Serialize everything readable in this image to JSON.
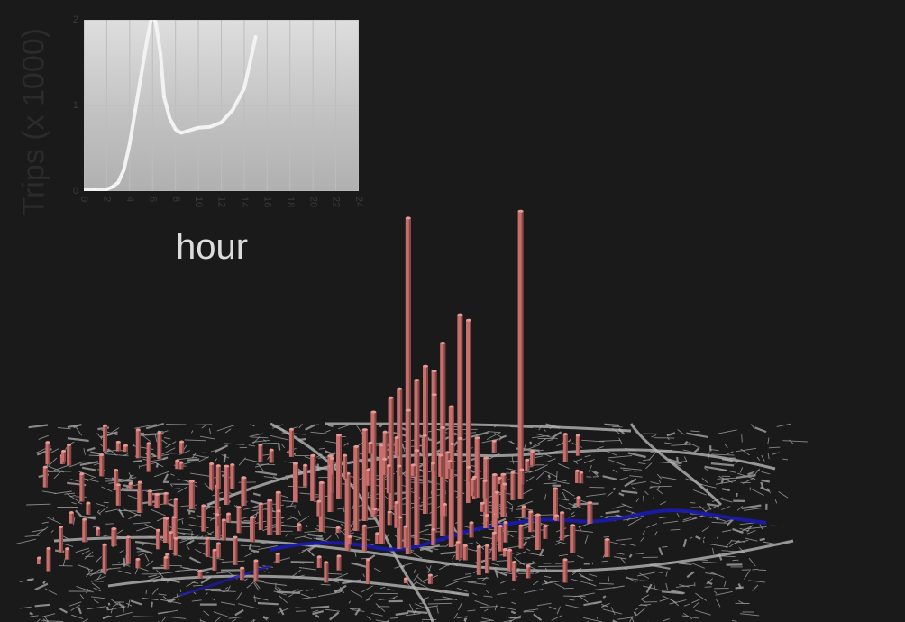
{
  "chart_data": [
    {
      "type": "line",
      "ylabel": "Trips (x 1000)",
      "xlabel": "hour",
      "x_ticks": [
        "0",
        "2",
        "4",
        "6",
        "8",
        "10",
        "12",
        "14",
        "16",
        "18",
        "20",
        "22",
        "24"
      ],
      "y_ticks": [
        "0",
        "1",
        "2"
      ],
      "xlim": [
        0,
        24
      ],
      "ylim": [
        0,
        2
      ],
      "grid": true,
      "series": [
        {
          "x": [
            0,
            1,
            2,
            2.5,
            3,
            3.5,
            4,
            4.5,
            5,
            5.5,
            6,
            6.3,
            6.7,
            7,
            7.5,
            8,
            8.5,
            9,
            10,
            11,
            12,
            13,
            14,
            14.5,
            15
          ],
          "y": [
            0.02,
            0.02,
            0.02,
            0.05,
            0.1,
            0.25,
            0.55,
            0.95,
            1.35,
            1.75,
            2.1,
            1.95,
            1.6,
            1.1,
            0.85,
            0.72,
            0.68,
            0.7,
            0.74,
            0.75,
            0.8,
            0.95,
            1.2,
            1.5,
            1.8
          ]
        }
      ]
    },
    {
      "type": "bar",
      "title": "",
      "bars": [
        {
          "x": 0.43,
          "h": 0.79
        },
        {
          "x": 0.49,
          "h": 0.61
        },
        {
          "x": 0.56,
          "h": 0.82
        },
        {
          "x": 0.46,
          "h": 0.46
        },
        {
          "x": 0.5,
          "h": 0.52
        },
        {
          "x": 0.47,
          "h": 0.55
        },
        {
          "x": 0.44,
          "h": 0.36
        },
        {
          "x": 0.42,
          "h": 0.43
        },
        {
          "x": 0.41,
          "h": 0.32
        },
        {
          "x": 0.4,
          "h": 0.28
        },
        {
          "x": 0.45,
          "h": 0.42
        },
        {
          "x": 0.48,
          "h": 0.4
        },
        {
          "x": 0.39,
          "h": 0.3
        },
        {
          "x": 0.36,
          "h": 0.22
        },
        {
          "x": 0.38,
          "h": 0.26
        },
        {
          "x": 0.43,
          "h": 0.41
        },
        {
          "x": 0.46,
          "h": 0.37
        },
        {
          "x": 0.49,
          "h": 0.34
        },
        {
          "x": 0.52,
          "h": 0.2
        },
        {
          "x": 0.35,
          "h": 0.18
        },
        {
          "x": 0.33,
          "h": 0.14
        },
        {
          "x": 0.3,
          "h": 0.11
        },
        {
          "x": 0.27,
          "h": 0.1
        },
        {
          "x": 0.24,
          "h": 0.08
        },
        {
          "x": 0.21,
          "h": 0.09
        },
        {
          "x": 0.18,
          "h": 0.08
        },
        {
          "x": 0.15,
          "h": 0.07
        },
        {
          "x": 0.12,
          "h": 0.06
        },
        {
          "x": 0.09,
          "h": 0.05
        },
        {
          "x": 0.54,
          "h": 0.12
        },
        {
          "x": 0.58,
          "h": 0.1
        },
        {
          "x": 0.6,
          "h": 0.09
        },
        {
          "x": 0.62,
          "h": 0.08
        },
        {
          "x": 0.64,
          "h": 0.06
        },
        {
          "x": 0.66,
          "h": 0.05
        },
        {
          "x": 0.53,
          "h": 0.15
        },
        {
          "x": 0.51,
          "h": 0.17
        },
        {
          "x": 0.37,
          "h": 0.24
        },
        {
          "x": 0.32,
          "h": 0.13
        },
        {
          "x": 0.28,
          "h": 0.12
        },
        {
          "x": 0.22,
          "h": 0.11
        },
        {
          "x": 0.16,
          "h": 0.06
        },
        {
          "x": 0.14,
          "h": 0.04
        },
        {
          "x": 0.25,
          "h": 0.07
        },
        {
          "x": 0.34,
          "h": 0.16
        },
        {
          "x": 0.44,
          "h": 0.27
        },
        {
          "x": 0.47,
          "h": 0.25
        },
        {
          "x": 0.42,
          "h": 0.09
        }
      ]
    }
  ],
  "colors": {
    "bar": "#c76f6c",
    "bar_dark": "#8a4745",
    "river": "#1a1aa8",
    "roads": "#a8a8a8",
    "line": "#ffffff",
    "inset_bg": "#cfcfcf"
  }
}
